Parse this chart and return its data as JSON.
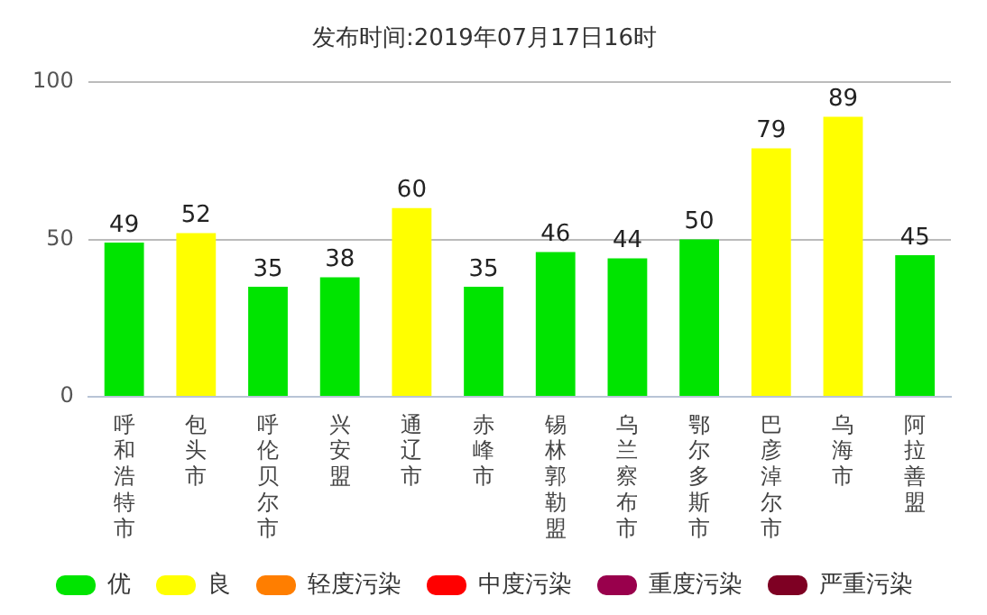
{
  "chart_data": {
    "type": "bar",
    "title": "发布时间:2019年07月17日16时",
    "categories": [
      "呼和浩特市",
      "包头市",
      "呼伦贝尔市",
      "兴安盟",
      "通辽市",
      "赤峰市",
      "锡林郭勒盟",
      "乌兰察布市",
      "鄂尔多斯市",
      "巴彦淖尔市",
      "乌海市",
      "阿拉善盟"
    ],
    "series": [
      {
        "name": "优",
        "color": "#00e400",
        "values": [
          49,
          null,
          35,
          38,
          null,
          35,
          46,
          44,
          50,
          null,
          null,
          45
        ]
      },
      {
        "name": "良",
        "color": "#ffff00",
        "values": [
          null,
          52,
          null,
          null,
          60,
          null,
          null,
          null,
          null,
          79,
          89,
          null
        ]
      },
      {
        "name": "轻度污染",
        "color": "#ff7e00",
        "values": [
          null,
          null,
          null,
          null,
          null,
          null,
          null,
          null,
          null,
          null,
          null,
          null
        ]
      },
      {
        "name": "中度污染",
        "color": "#ff0000",
        "values": [
          null,
          null,
          null,
          null,
          null,
          null,
          null,
          null,
          null,
          null,
          null,
          null
        ]
      },
      {
        "name": "重度污染",
        "color": "#99004c",
        "values": [
          null,
          null,
          null,
          null,
          null,
          null,
          null,
          null,
          null,
          null,
          null,
          null
        ]
      },
      {
        "name": "严重污染",
        "color": "#7e0023",
        "values": [
          null,
          null,
          null,
          null,
          null,
          null,
          null,
          null,
          null,
          null,
          null,
          null
        ]
      }
    ],
    "ylim": [
      0,
      100
    ],
    "yticks": [
      0,
      50,
      100
    ],
    "grid": "y",
    "legend": "bottom",
    "data_labels": true
  }
}
